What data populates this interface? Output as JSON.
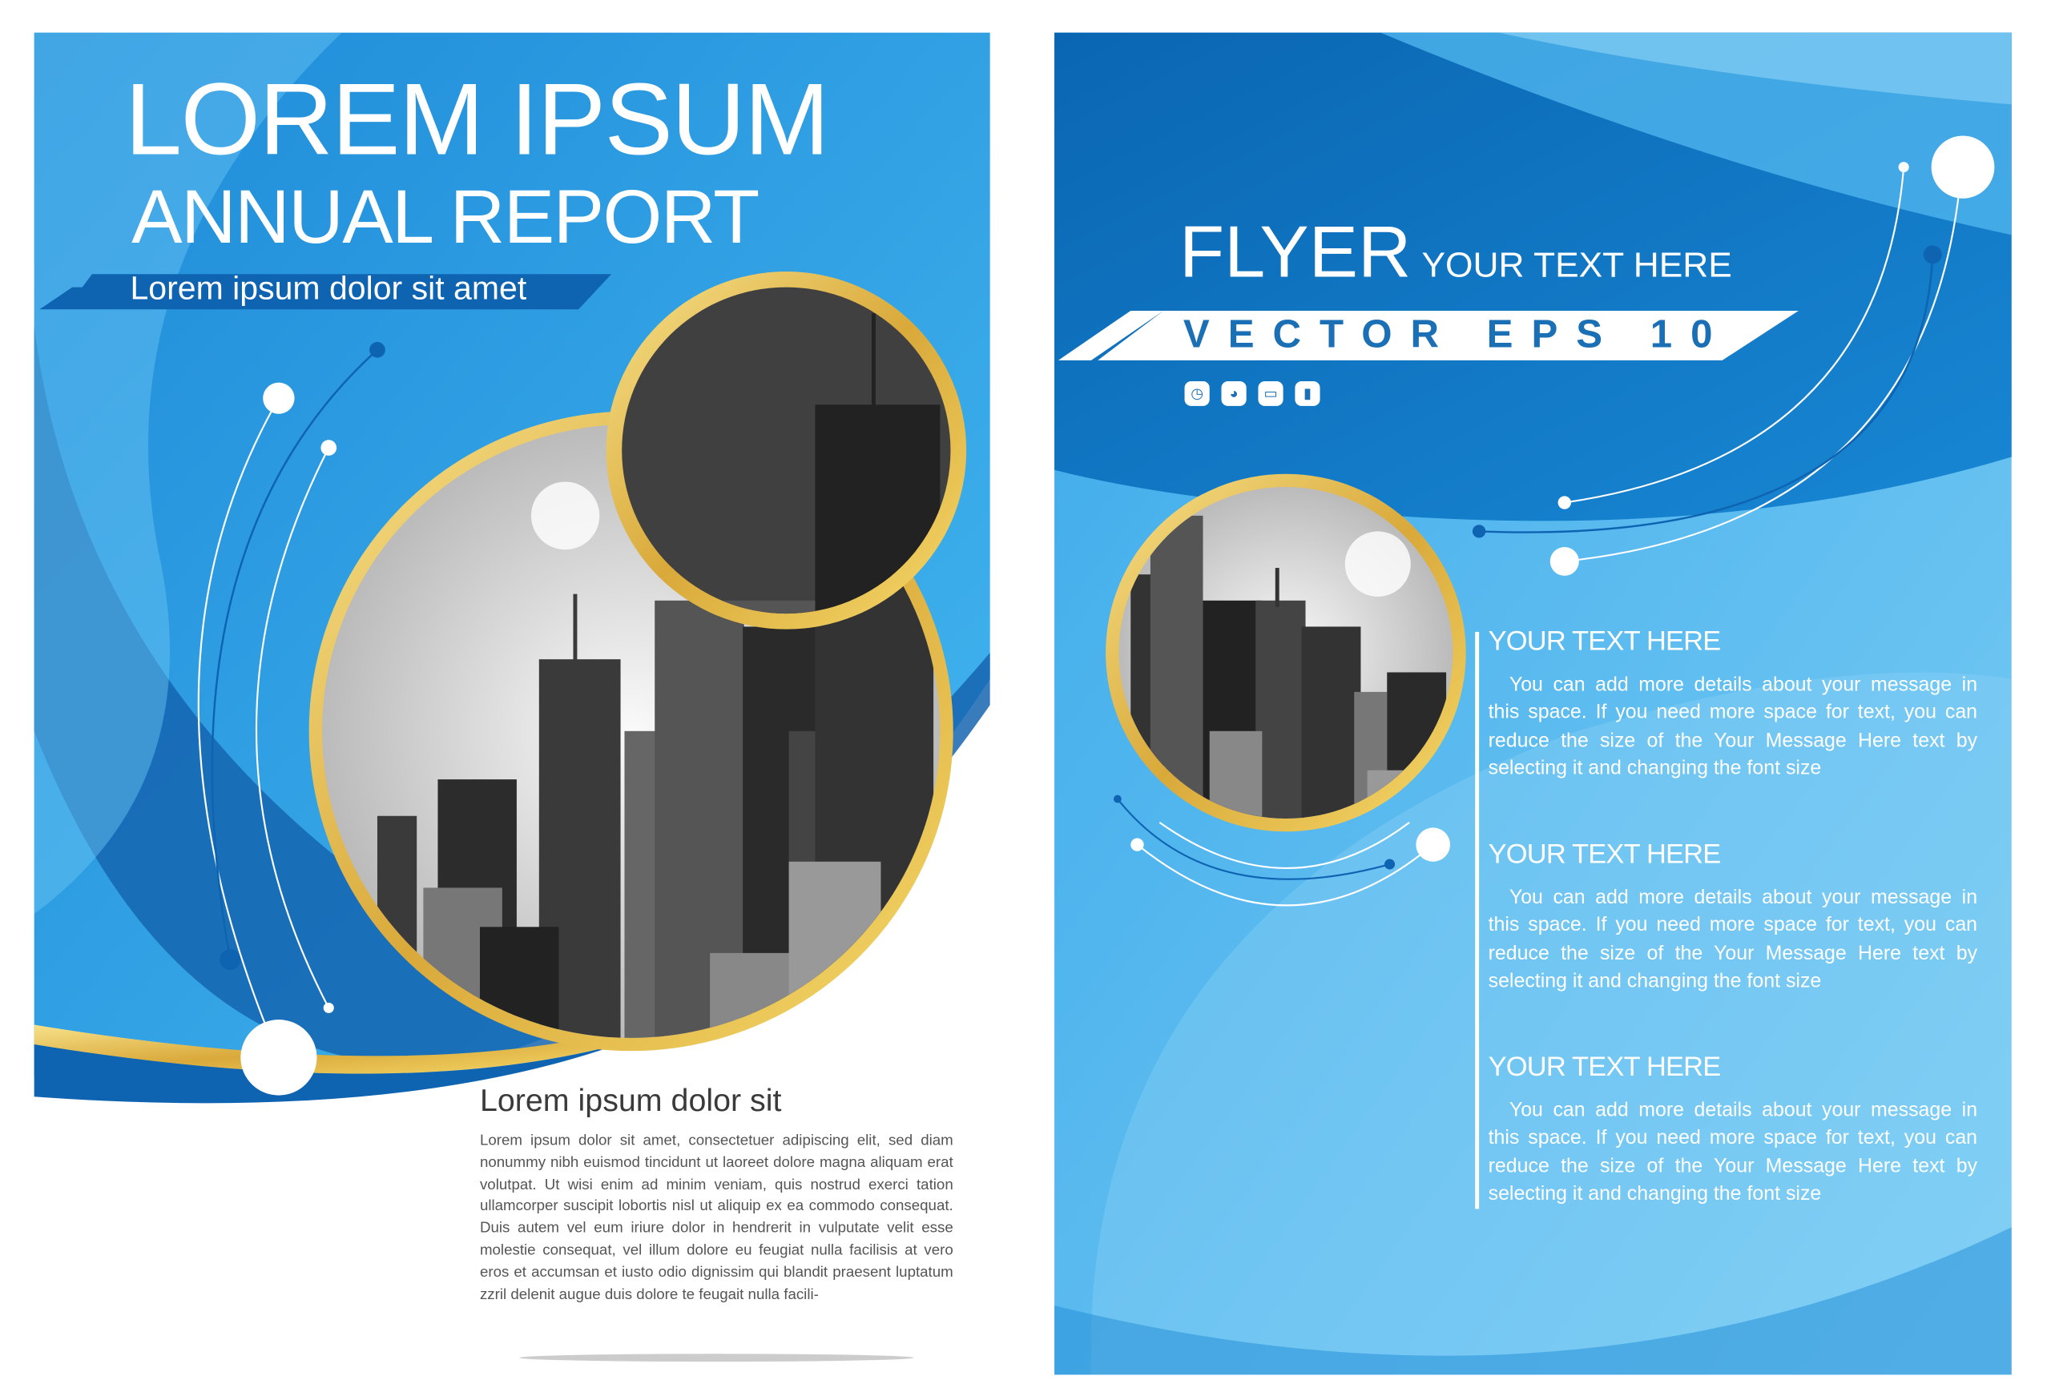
{
  "left_page": {
    "title": "LOREM IPSUM",
    "subtitle": "ANNUAL REPORT",
    "tagline": "Lorem ipsum dolor sit amet",
    "body_heading": "Lorem ipsum dolor sit",
    "body_text": "Lorem ipsum dolor sit amet, consectetuer adipiscing elit, sed diam nonummy nibh euismod tincidunt ut laoreet dolore magna aliquam erat volutpat. Ut wisi enim ad minim veniam, quis nostrud exerci tation ullamcorper suscipit lobortis nisl ut aliquip ex ea commodo consequat. Duis autem vel eum iriure dolor in hendrerit in vulputate velit esse molestie consequat, vel illum dolore eu feugiat nulla facilisis at vero eros et accumsan et iusto odio dignissim qui blandit praesent luptatum zzril delenit augue duis dolore te feugait nulla facili-"
  },
  "right_page": {
    "title": "FLYER",
    "title_suffix": "YOUR TEXT HERE",
    "banner": "VECTOR EPS 10",
    "icons": [
      "calendar-clock-icon",
      "pie-chart-icon",
      "briefcase-icon",
      "bar-chart-icon"
    ],
    "sections": [
      {
        "heading": "YOUR TEXT HERE",
        "text": "You can add more details about your message in this space. If you need more space for text, you can reduce the size of the Your Message Here text by selecting it and changing the font size"
      },
      {
        "heading": "YOUR TEXT HERE",
        "text": "You can add more details about your message in this space. If you need more space for text, you can reduce the size of the Your Message Here text by selecting it and changing the font size"
      },
      {
        "heading": "YOUR TEXT HERE",
        "text": "You can add more details about your message in this space. If you need more space for text, you can reduce the size of the Your Message Here text by selecting it and changing the font size"
      }
    ]
  },
  "colors": {
    "primary_blue": "#1a7fd0",
    "dark_blue": "#0b68b3",
    "light_blue": "#5cbdf0",
    "gold": "#e8c24a"
  }
}
